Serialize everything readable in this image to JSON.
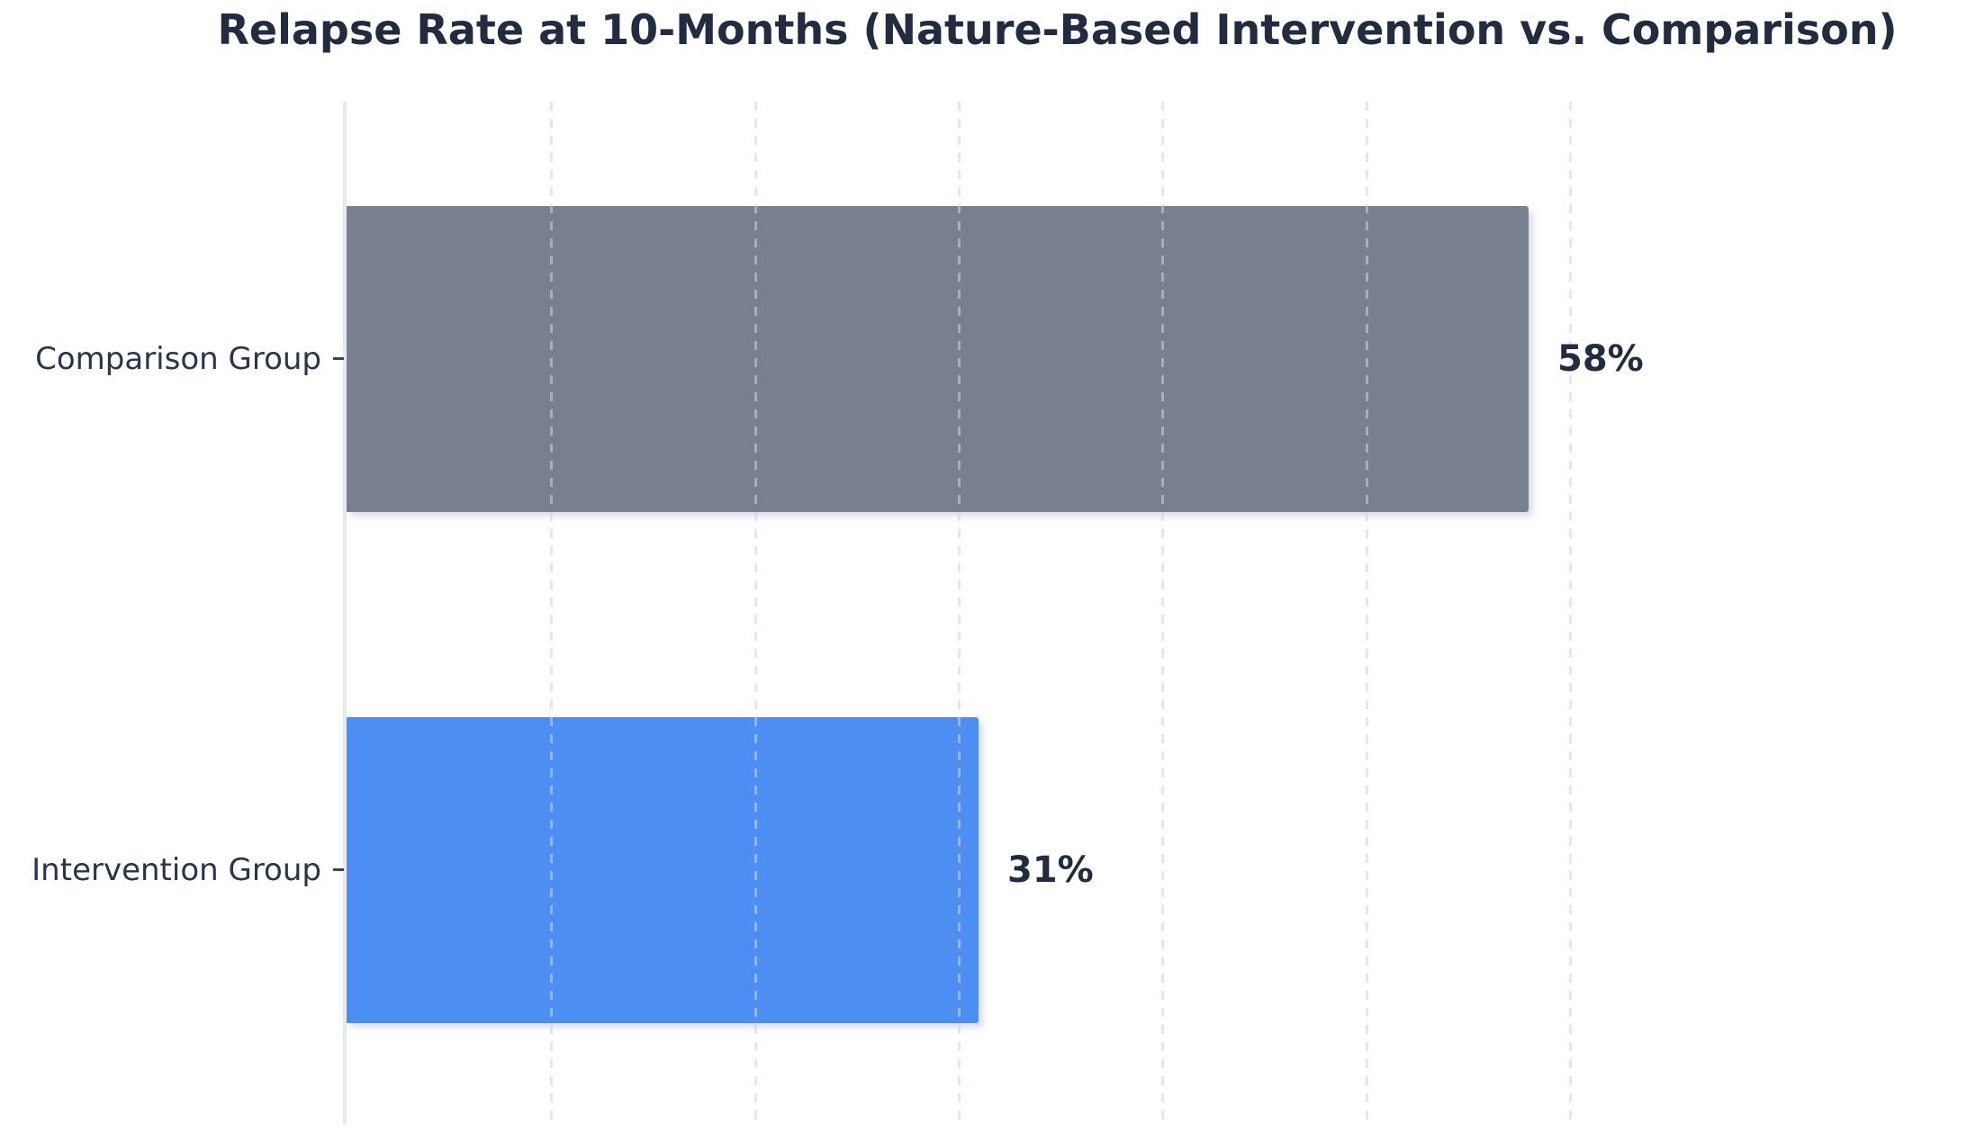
{
  "chart_data": {
    "type": "bar",
    "orientation": "horizontal",
    "title": "Relapse Rate at 10-Months (Nature-Based Intervention vs. Comparison)",
    "categories": [
      "Comparison Group",
      "Intervention Group"
    ],
    "values": [
      58,
      31
    ],
    "value_labels": [
      "58%",
      "31%"
    ],
    "series_colors": [
      "#787f8e",
      "#4d8ef3"
    ],
    "xlabel": "",
    "ylabel": "",
    "xlim": [
      0,
      70.7
    ],
    "grid": {
      "axis": "x",
      "style": "dashed",
      "tick_values": [
        10,
        20,
        30,
        40,
        50,
        60
      ]
    },
    "legend": "none",
    "background_color": "#ffffff",
    "title_color": "#212c3f",
    "category_label_color": "#2b3548",
    "value_label_color": "#212c3f",
    "axis_spine_color": "#e4e9f2"
  }
}
